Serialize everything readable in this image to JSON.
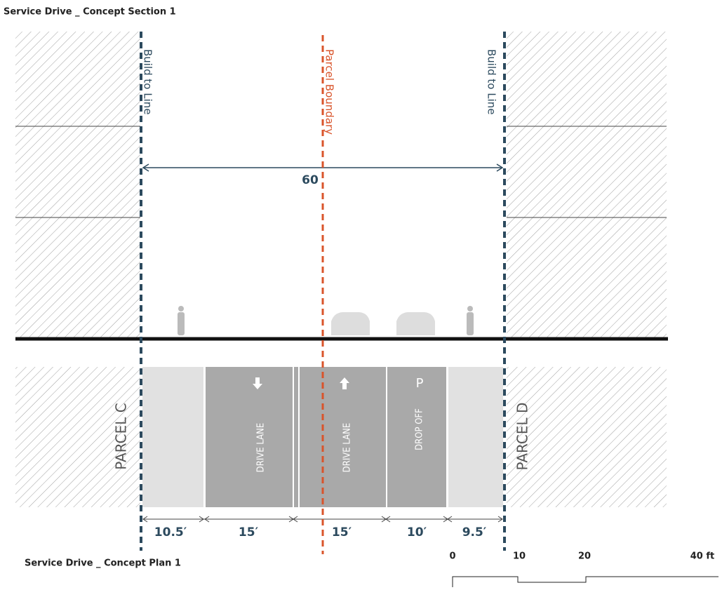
{
  "section": {
    "title": "Service Drive _ Concept Section 1",
    "build_to_line_left": "Build to Line",
    "parcel_boundary": "Parcel Boundary",
    "build_to_line_right": "Build to Line",
    "overall_width": "60"
  },
  "plan": {
    "title": "Service Drive _ Concept Plan 1",
    "parcel_left": "PARCEL C",
    "parcel_right": "PARCEL D",
    "lane_labels": [
      "DRIVE LANE",
      "DRIVE LANE",
      "DROP OFF"
    ],
    "parking_symbol": "P",
    "dimensions": [
      "10.5′",
      "15′",
      "15′",
      "10′",
      "9.5′"
    ]
  },
  "scale": {
    "labels": [
      "0",
      "10",
      "20",
      "40 ft"
    ]
  }
}
